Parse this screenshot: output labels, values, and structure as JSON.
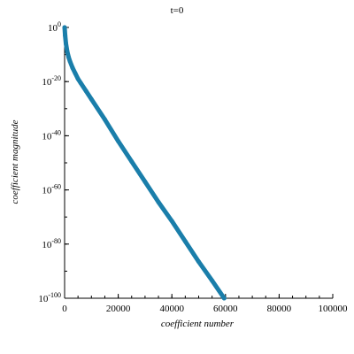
{
  "chart_data": {
    "type": "line",
    "title": "t=0",
    "xlabel": "coefficient number",
    "ylabel": "coefficient magnitude",
    "xlim": [
      0,
      100000
    ],
    "ylim_log10": [
      -100,
      0
    ],
    "y_scale": "log",
    "x_ticks": [
      "0",
      "20000",
      "40000",
      "60000",
      "80000",
      "100000"
    ],
    "y_ticks": [
      {
        "base": "10",
        "exp": "0"
      },
      {
        "base": "10",
        "exp": "-20"
      },
      {
        "base": "10",
        "exp": "-40"
      },
      {
        "base": "10",
        "exp": "-60"
      },
      {
        "base": "10",
        "exp": "-80"
      },
      {
        "base": "10",
        "exp": "-100"
      }
    ],
    "grid": false,
    "series": [
      {
        "color": "#1a7eaa",
        "x": [
          0,
          200,
          500,
          1000,
          1500,
          2000,
          3000,
          4000,
          5000,
          6000,
          8000,
          10000,
          15000,
          20000,
          25000,
          30000,
          35000,
          40000,
          45000,
          50000,
          55000,
          59500
        ],
        "log10_y": [
          0,
          -3,
          -6,
          -9,
          -11,
          -12.5,
          -15,
          -17,
          -19,
          -20.5,
          -23.5,
          -26.5,
          -34,
          -42,
          -49.5,
          -57,
          -64.5,
          -71.5,
          -79,
          -86.5,
          -93.5,
          -100
        ]
      }
    ]
  }
}
